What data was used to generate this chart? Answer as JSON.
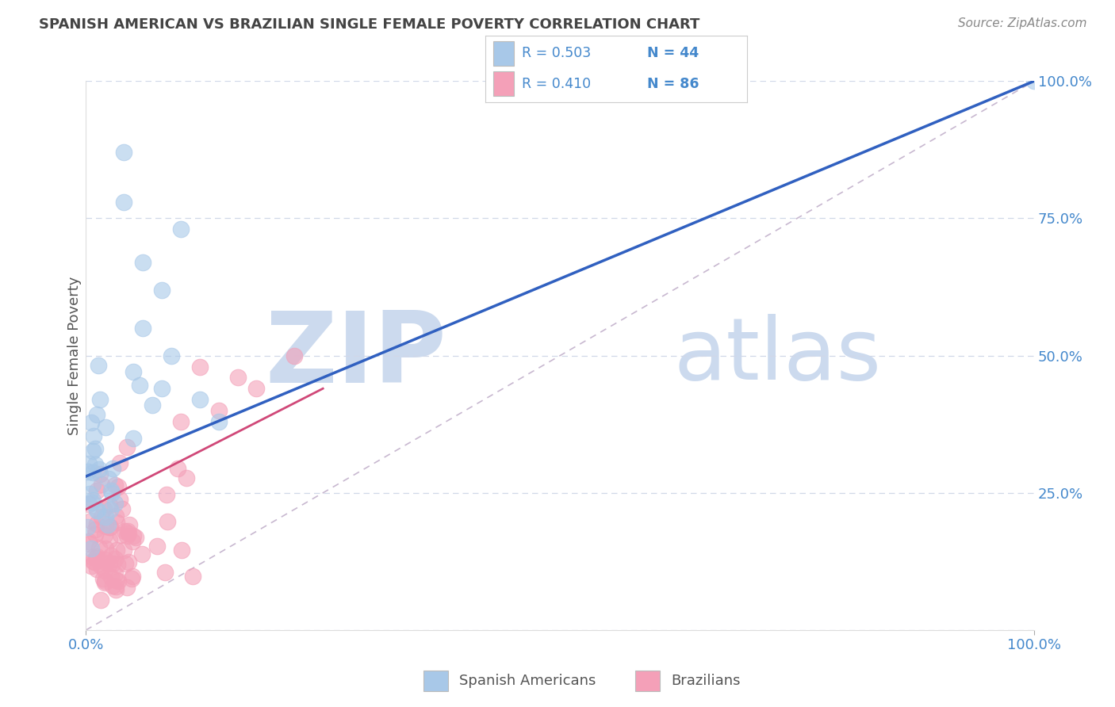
{
  "title": "SPANISH AMERICAN VS BRAZILIAN SINGLE FEMALE POVERTY CORRELATION CHART",
  "source": "Source: ZipAtlas.com",
  "ylabel": "Single Female Poverty",
  "legend_blue_label": "Spanish Americans",
  "legend_pink_label": "Brazilians",
  "blue_color": "#a8c8e8",
  "pink_color": "#f4a0b8",
  "blue_line_color": "#3060c0",
  "pink_line_color": "#d04878",
  "ref_line_color": "#c8b8d0",
  "watermark_color": "#ccdaee",
  "watermark": "ZIPatlas",
  "tick_color": "#4488cc",
  "grid_color": "#d0d8e8",
  "title_color": "#444444",
  "ylabel_color": "#555555",
  "source_color": "#888888",
  "legend_text_color": "#4488cc",
  "xlim": [
    0,
    1.0
  ],
  "ylim": [
    0,
    1.0
  ],
  "xticks": [
    0.0,
    1.0
  ],
  "xticklabels": [
    "0.0%",
    "100.0%"
  ],
  "yticks": [
    0.0,
    0.25,
    0.5,
    0.75,
    1.0
  ],
  "yticklabels": [
    "",
    "25.0%",
    "50.0%",
    "75.0%",
    "100.0%"
  ],
  "blue_R": 0.503,
  "blue_N": 44,
  "pink_R": 0.41,
  "pink_N": 86,
  "blue_line_x0": 0.0,
  "blue_line_y0": 0.28,
  "blue_line_x1": 1.0,
  "blue_line_y1": 1.0,
  "pink_line_x0": 0.0,
  "pink_line_y0": 0.22,
  "pink_line_x1": 0.25,
  "pink_line_y1": 0.44
}
